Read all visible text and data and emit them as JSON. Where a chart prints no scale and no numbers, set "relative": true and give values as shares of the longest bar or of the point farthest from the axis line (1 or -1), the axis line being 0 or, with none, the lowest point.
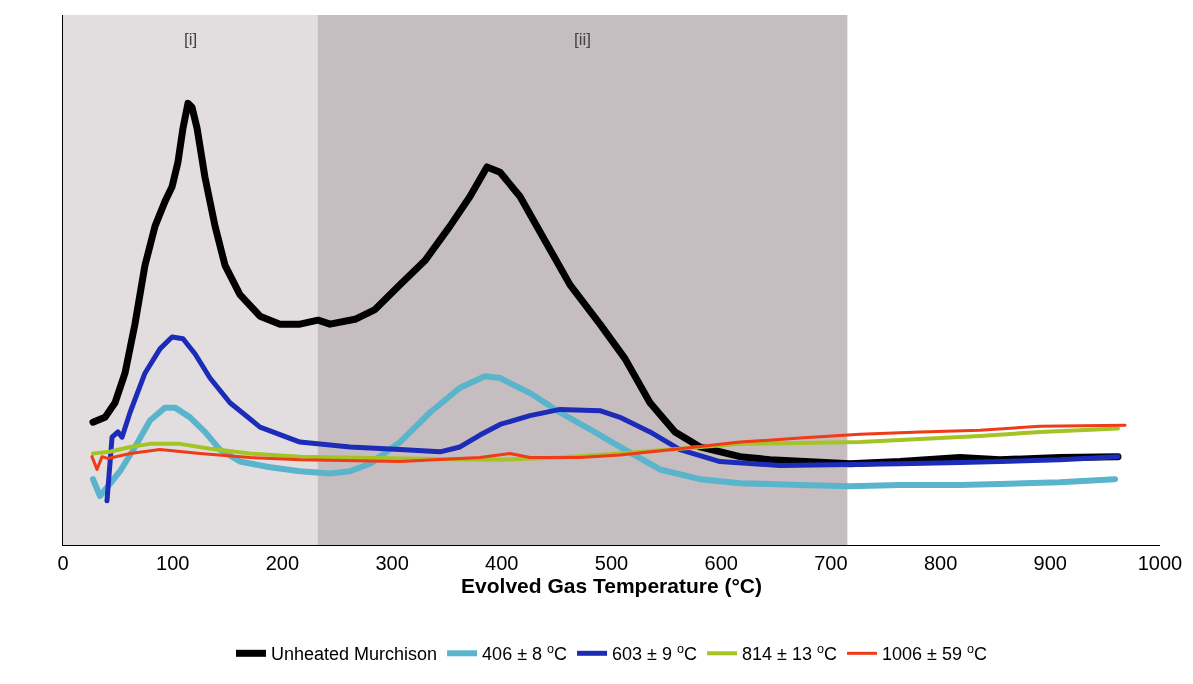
{
  "chart_data": {
    "type": "line",
    "relative": true,
    "xlabel": "Evolved Gas Temperature (°C)",
    "xlim": [
      0,
      1000
    ],
    "xticks": [
      0,
      100,
      200,
      300,
      400,
      500,
      600,
      700,
      800,
      900,
      1000
    ],
    "grid": false,
    "legend": "bottom",
    "marker": "none",
    "line_style": "solid",
    "bands": [
      {
        "axis": "x",
        "from": 0,
        "to": 232,
        "label": "[i]",
        "color": "#e2dedf"
      },
      {
        "axis": "x",
        "from": 232,
        "to": 715,
        "label": "[ii]",
        "color": "#c5bdbf"
      }
    ],
    "series": [
      {
        "name": "Unheated Murchison",
        "color": "#000000",
        "x": [
          27.3,
          38.3,
          47.4,
          56.5,
          65.6,
          74.7,
          83.9,
          93.0,
          99.4,
          104.8,
          109.4,
          113.9,
          117.6,
          122.2,
          129.4,
          138.6,
          147.7,
          161.3,
          179.6,
          197.8,
          216.0,
          232.5,
          243.4,
          266.2,
          284.4,
          307.2,
          330.0,
          352.8,
          371.0,
          386.5,
          398.4,
          416.6,
          439.4,
          462.2,
          489.5,
          512.3,
          535.1,
          557.9,
          580.7,
          617.1,
          644.5,
          717.4,
          763.0,
          817.7,
          854.1,
          908.8,
          961.7
        ],
        "values": [
          0.278,
          0.289,
          0.322,
          0.389,
          0.5,
          0.633,
          0.722,
          0.778,
          0.811,
          0.867,
          0.944,
          1.0,
          0.991,
          0.944,
          0.833,
          0.722,
          0.633,
          0.567,
          0.518,
          0.5,
          0.5,
          0.509,
          0.5,
          0.511,
          0.533,
          0.589,
          0.644,
          0.722,
          0.789,
          0.856,
          0.844,
          0.789,
          0.689,
          0.589,
          0.5,
          0.422,
          0.322,
          0.256,
          0.222,
          0.2,
          0.193,
          0.184,
          0.189,
          0.198,
          0.193,
          0.198,
          0.2
        ]
      },
      {
        "name": "406 ± 8 $^{o}$C",
        "color": "#5ab4cc",
        "x": [
          27.3,
          33.7,
          41.0,
          52.0,
          65.6,
          79.3,
          93.0,
          102.1,
          115.8,
          129.4,
          143.1,
          161.3,
          188.7,
          216.0,
          243.4,
          261.6,
          279.9,
          307.2,
          334.5,
          361.9,
          384.7,
          398.4,
          425.7,
          453.1,
          480.4,
          507.7,
          544.2,
          580.7,
          617.1,
          671.8,
          717.4,
          763.0,
          817.7,
          854.1,
          908.8,
          959.0
        ],
        "values": [
          0.149,
          0.111,
          0.133,
          0.167,
          0.222,
          0.282,
          0.311,
          0.311,
          0.289,
          0.256,
          0.216,
          0.189,
          0.176,
          0.167,
          0.162,
          0.167,
          0.184,
          0.233,
          0.3,
          0.356,
          0.382,
          0.378,
          0.344,
          0.3,
          0.262,
          0.222,
          0.171,
          0.149,
          0.14,
          0.136,
          0.133,
          0.136,
          0.136,
          0.138,
          0.142,
          0.149
        ]
      },
      {
        "name": "603 ± 9 $^{o}$C",
        "color": "#1c2bb8",
        "x": [
          40.1,
          44.7,
          50.1,
          53.8,
          61.1,
          74.7,
          88.4,
          99.4,
          109.4,
          120.3,
          134.0,
          152.2,
          179.6,
          216.0,
          261.6,
          307.2,
          343.7,
          361.9,
          380.1,
          398.4,
          425.7,
          453.1,
          489.5,
          507.7,
          535.1,
          562.4,
          598.9,
          653.6,
          717.4,
          763.0,
          817.7,
          854.1,
          908.8,
          961.7
        ],
        "values": [
          0.1,
          0.244,
          0.256,
          0.244,
          0.3,
          0.389,
          0.444,
          0.471,
          0.467,
          0.433,
          0.378,
          0.322,
          0.267,
          0.233,
          0.222,
          0.216,
          0.211,
          0.222,
          0.249,
          0.273,
          0.293,
          0.307,
          0.304,
          0.289,
          0.256,
          0.216,
          0.189,
          0.18,
          0.182,
          0.184,
          0.187,
          0.189,
          0.193,
          0.2
        ]
      },
      {
        "name": "814 ± 13 $^{o}$C",
        "color": "#a3c424",
        "x": [
          27.3,
          42.8,
          61.1,
          79.3,
          106.7,
          134.0,
          170.5,
          216.0,
          307.2,
          398.4,
          453.1,
          507.7,
          562.4,
          617.1,
          671.8,
          726.5,
          781.2,
          835.9,
          890.6,
          961.7
        ],
        "values": [
          0.207,
          0.211,
          0.222,
          0.229,
          0.229,
          0.218,
          0.207,
          0.2,
          0.196,
          0.193,
          0.198,
          0.207,
          0.218,
          0.229,
          0.231,
          0.233,
          0.24,
          0.247,
          0.256,
          0.264
        ]
      },
      {
        "name": "1006 ± 59 $^{o}$C",
        "color": "#f03a18",
        "x": [
          26.4,
          31.0,
          35.6,
          41.0,
          61.1,
          88.4,
          124.9,
          170.5,
          216.0,
          307.2,
          380.1,
          407.5,
          425.7,
          471.3,
          507.7,
          562.4,
          617.1,
          671.8,
          726.5,
          781.2,
          835.9,
          890.6,
          968.1
        ],
        "values": [
          0.2,
          0.171,
          0.2,
          0.196,
          0.207,
          0.216,
          0.207,
          0.198,
          0.193,
          0.189,
          0.198,
          0.207,
          0.198,
          0.198,
          0.204,
          0.218,
          0.233,
          0.242,
          0.251,
          0.256,
          0.26,
          0.269,
          0.271
        ]
      }
    ]
  }
}
